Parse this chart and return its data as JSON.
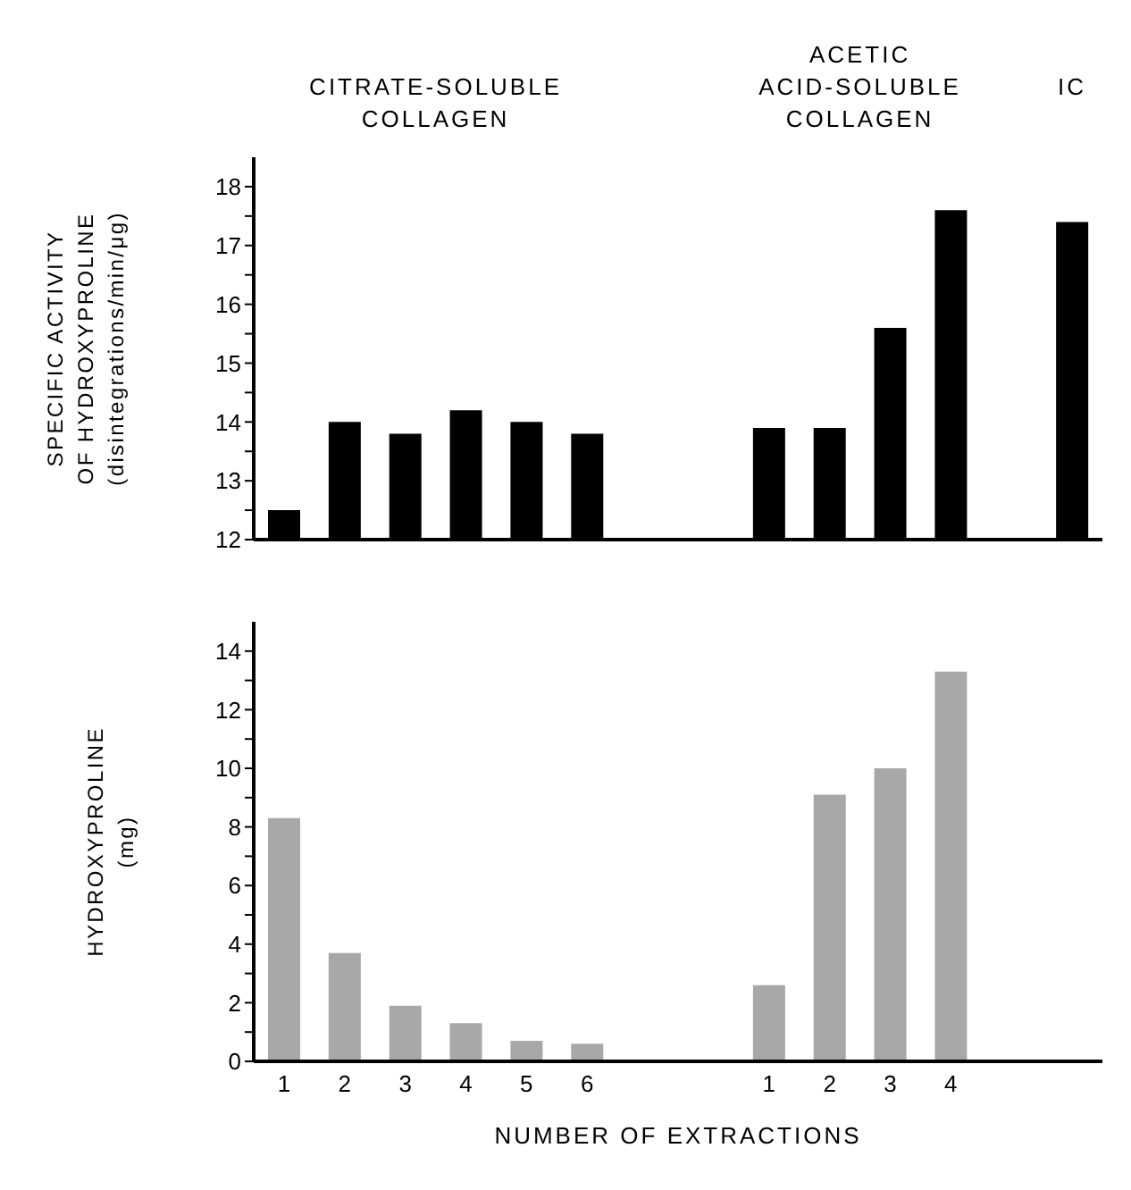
{
  "chart_data": [
    {
      "type": "bar",
      "ylabel": "SPECIFIC ACTIVITY\nOF HYDROXYPROLINE\n(disintegrations/min/μg)",
      "annotations": [
        "CITRATE-SOLUBLE\nCOLLAGEN",
        "ACETIC\nACID-SOLUBLE\nCOLLAGEN",
        "IC"
      ],
      "categories": [
        null,
        null,
        null,
        null,
        null,
        null,
        null,
        null,
        null,
        null,
        null,
        null,
        null,
        null
      ],
      "values": [
        12.5,
        14.0,
        13.8,
        14.2,
        14.0,
        13.8,
        null,
        null,
        13.9,
        13.9,
        15.6,
        17.6,
        null,
        17.4
      ],
      "color": "#000000",
      "ylim": [
        12,
        18.5
      ],
      "yticks": [
        12,
        {
          "value": 12.5,
          "label": null
        },
        13,
        {
          "value": 13.5,
          "label": null
        },
        14,
        {
          "value": 14.5,
          "label": null
        },
        15,
        {
          "value": 15.5,
          "label": null
        },
        16,
        {
          "value": 16.5,
          "label": null
        },
        17,
        {
          "value": 17.5,
          "label": null
        },
        18
      ],
      "grid": false,
      "legend": false
    },
    {
      "type": "bar",
      "ylabel": "HYDROXYPROLINE\n(mg)",
      "xlabel": "NUMBER OF EXTRACTIONS",
      "categories": [
        "1",
        "2",
        "3",
        "4",
        "5",
        "6",
        null,
        null,
        "1",
        "2",
        "3",
        "4",
        null,
        null
      ],
      "values": [
        8.3,
        3.7,
        1.9,
        1.3,
        0.7,
        0.6,
        null,
        null,
        2.6,
        9.1,
        10.0,
        13.3,
        null,
        null
      ],
      "color": "#a8a8a8",
      "ylim": [
        0,
        15
      ],
      "yticks": [
        0,
        {
          "value": 1,
          "label": null
        },
        2,
        {
          "value": 3,
          "label": null
        },
        4,
        {
          "value": 5,
          "label": null
        },
        6,
        {
          "value": 7,
          "label": null
        },
        8,
        {
          "value": 9,
          "label": null
        },
        10,
        {
          "value": 11,
          "label": null
        },
        12,
        {
          "value": 13,
          "label": null
        },
        14
      ],
      "grid": false,
      "legend": false
    }
  ]
}
